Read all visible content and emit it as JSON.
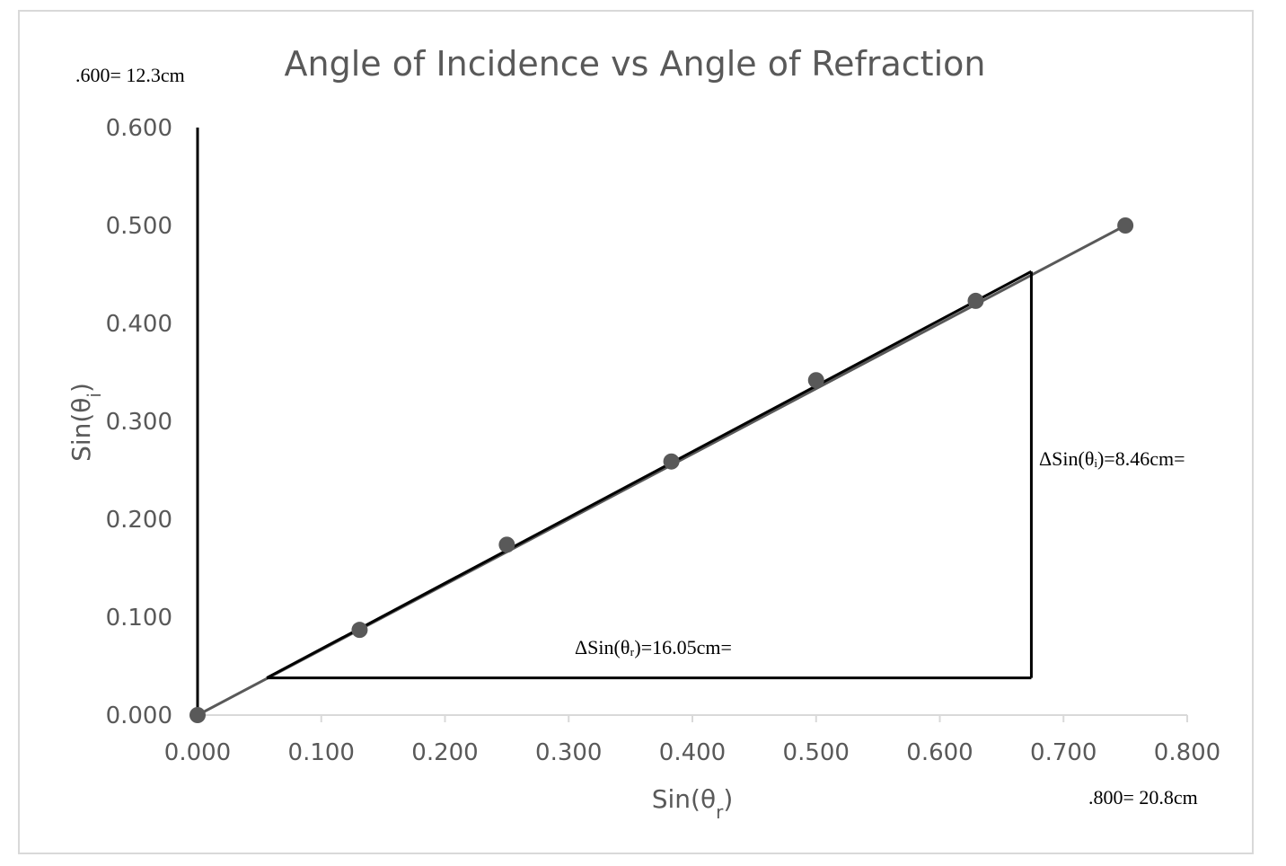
{
  "chart_data": {
    "type": "scatter",
    "title": "Angle of Incidence vs Angle of Refraction",
    "xlabel": "Sin(θr)",
    "ylabel": "Sin(θi)",
    "xlim": [
      0,
      0.8
    ],
    "ylim": [
      0,
      0.6
    ],
    "x_ticks": [
      "0.000",
      "0.100",
      "0.200",
      "0.300",
      "0.400",
      "0.500",
      "0.600",
      "0.700",
      "0.800"
    ],
    "y_ticks": [
      "0.000",
      "0.100",
      "0.200",
      "0.300",
      "0.400",
      "0.500",
      "0.600"
    ],
    "points": [
      {
        "x": 0.0,
        "y": 0.0
      },
      {
        "x": 0.131,
        "y": 0.087
      },
      {
        "x": 0.25,
        "y": 0.174
      },
      {
        "x": 0.383,
        "y": 0.259
      },
      {
        "x": 0.5,
        "y": 0.342
      },
      {
        "x": 0.629,
        "y": 0.423
      },
      {
        "x": 0.75,
        "y": 0.5
      }
    ],
    "trendline": [
      {
        "x": 0.0,
        "y": 0.0
      },
      {
        "x": 0.75,
        "y": 0.5
      }
    ],
    "annotations": {
      "y_scale": ".600= 12.3cm",
      "x_scale": ".800= 20.8cm",
      "delta_y": "ΔSin(θᵢ)=8.46cm=",
      "delta_x": "ΔSin(θᵣ)=16.05cm="
    },
    "slope_triangle": {
      "x1": 0.056,
      "y1": 0.038,
      "x2": 0.674,
      "y2": 0.453
    },
    "grid": false,
    "legend": "none",
    "colors": {
      "marker": "#595959",
      "trendline": "#595959",
      "triangle": "#000000",
      "axis": "#d9d9d9",
      "text": "#595959"
    }
  }
}
